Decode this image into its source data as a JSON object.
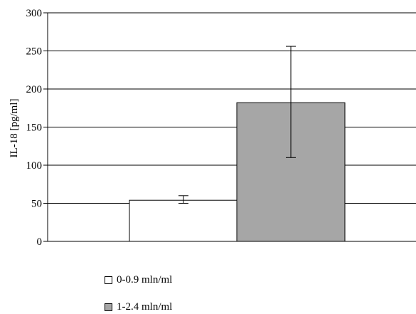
{
  "chart_data": {
    "type": "bar",
    "ylabel": "IL-18 [pg/ml]",
    "ylim": [
      0,
      300
    ],
    "yticks": [
      0,
      50,
      100,
      150,
      200,
      250,
      300
    ],
    "grid": true,
    "series": [
      {
        "name": "0-0.9 mln/ml",
        "value": 54,
        "error_low": 50,
        "error_high": 60,
        "color": "#ffffff"
      },
      {
        "name": "1-2.4 mln/ml",
        "value": 182,
        "error_low": 110,
        "error_high": 256,
        "color": "#a6a6a6"
      }
    ],
    "legend_position": "bottom-left"
  }
}
